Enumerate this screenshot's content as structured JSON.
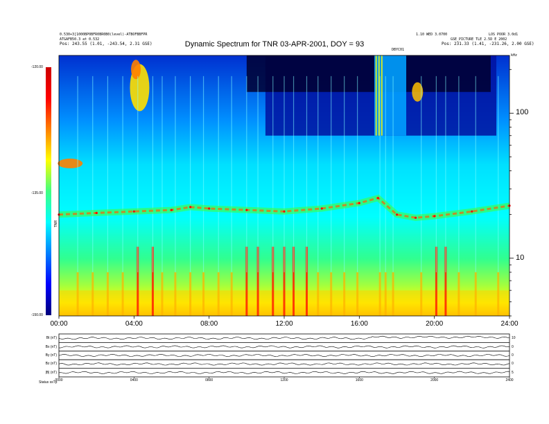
{
  "header": {
    "left_line1": "0.530+3[1000BP0BFR0BR0B0(level)-ATBOFBBFPR",
    "left_line2": "ATGAFB50.3 at 0.532",
    "left_line3": "Pos:  243.55 (1.01, -243.54, 2.31 GSE)",
    "right_line1": "1.10 WED 3.0700",
    "right_line2": "GSE_PICTURE TLE 2.5D  E 2002",
    "right_line3": "Pos:  231.33 (1.41, -231.26, 2.00 GSE)",
    "right_top": "LOS POOR 3.0d1",
    "marker": "DBYC01",
    "khz_unit": "kHz"
  },
  "title": "Dynamic Spectrum for TNR 03-APR-2001, DOY = 93",
  "colorbar": {
    "max_label": "-120.00",
    "mid_label": "-135.00",
    "min_label": "-150.00",
    "unit": "TNR",
    "colors": [
      "#00007a",
      "#0000ff",
      "#0080ff",
      "#00ffff",
      "#40ff80",
      "#ffff00",
      "#ff8000",
      "#ff0000",
      "#cc0000"
    ]
  },
  "footer": {
    "corner_label": "Status  ssTp"
  },
  "chart_data": [
    {
      "type": "heatmap",
      "title": "Dynamic Spectrum for TNR 03-APR-2001, DOY = 93",
      "x_ticks": [
        "00:00",
        "04:00",
        "08:00",
        "12:00",
        "16:00",
        "20:00",
        "24:00"
      ],
      "xlim": [
        0,
        24
      ],
      "y_scale": "log",
      "y_ticks": [
        10,
        100
      ],
      "y_unit": "kHz",
      "ylim": [
        4,
        250
      ],
      "colorbar_range_db": [
        -150,
        -120
      ],
      "emission_band": {
        "x": [
          0,
          2,
          4,
          6,
          7,
          8,
          10,
          12,
          14,
          16,
          17,
          18,
          19,
          20,
          22,
          24
        ],
        "y": [
          20,
          20.5,
          21,
          21.5,
          22.5,
          22,
          21.5,
          21,
          22,
          24,
          26,
          20,
          19,
          19.5,
          21,
          23
        ]
      }
    },
    {
      "type": "line",
      "title": "",
      "panels": [
        {
          "label": "Bt (nT)",
          "right_label": "10"
        },
        {
          "label": "Bx (nT)",
          "right_label": "0"
        },
        {
          "label": "By (nT)",
          "right_label": "0"
        },
        {
          "label": "Bz (nT)",
          "right_label": "0"
        },
        {
          "label": "|B| (nT)",
          "right_label": "5"
        }
      ],
      "x_ticks": [
        "0000",
        "0400",
        "0800",
        "1200",
        "1600",
        "2000",
        "2400"
      ],
      "xlim": [
        0,
        24
      ]
    }
  ]
}
